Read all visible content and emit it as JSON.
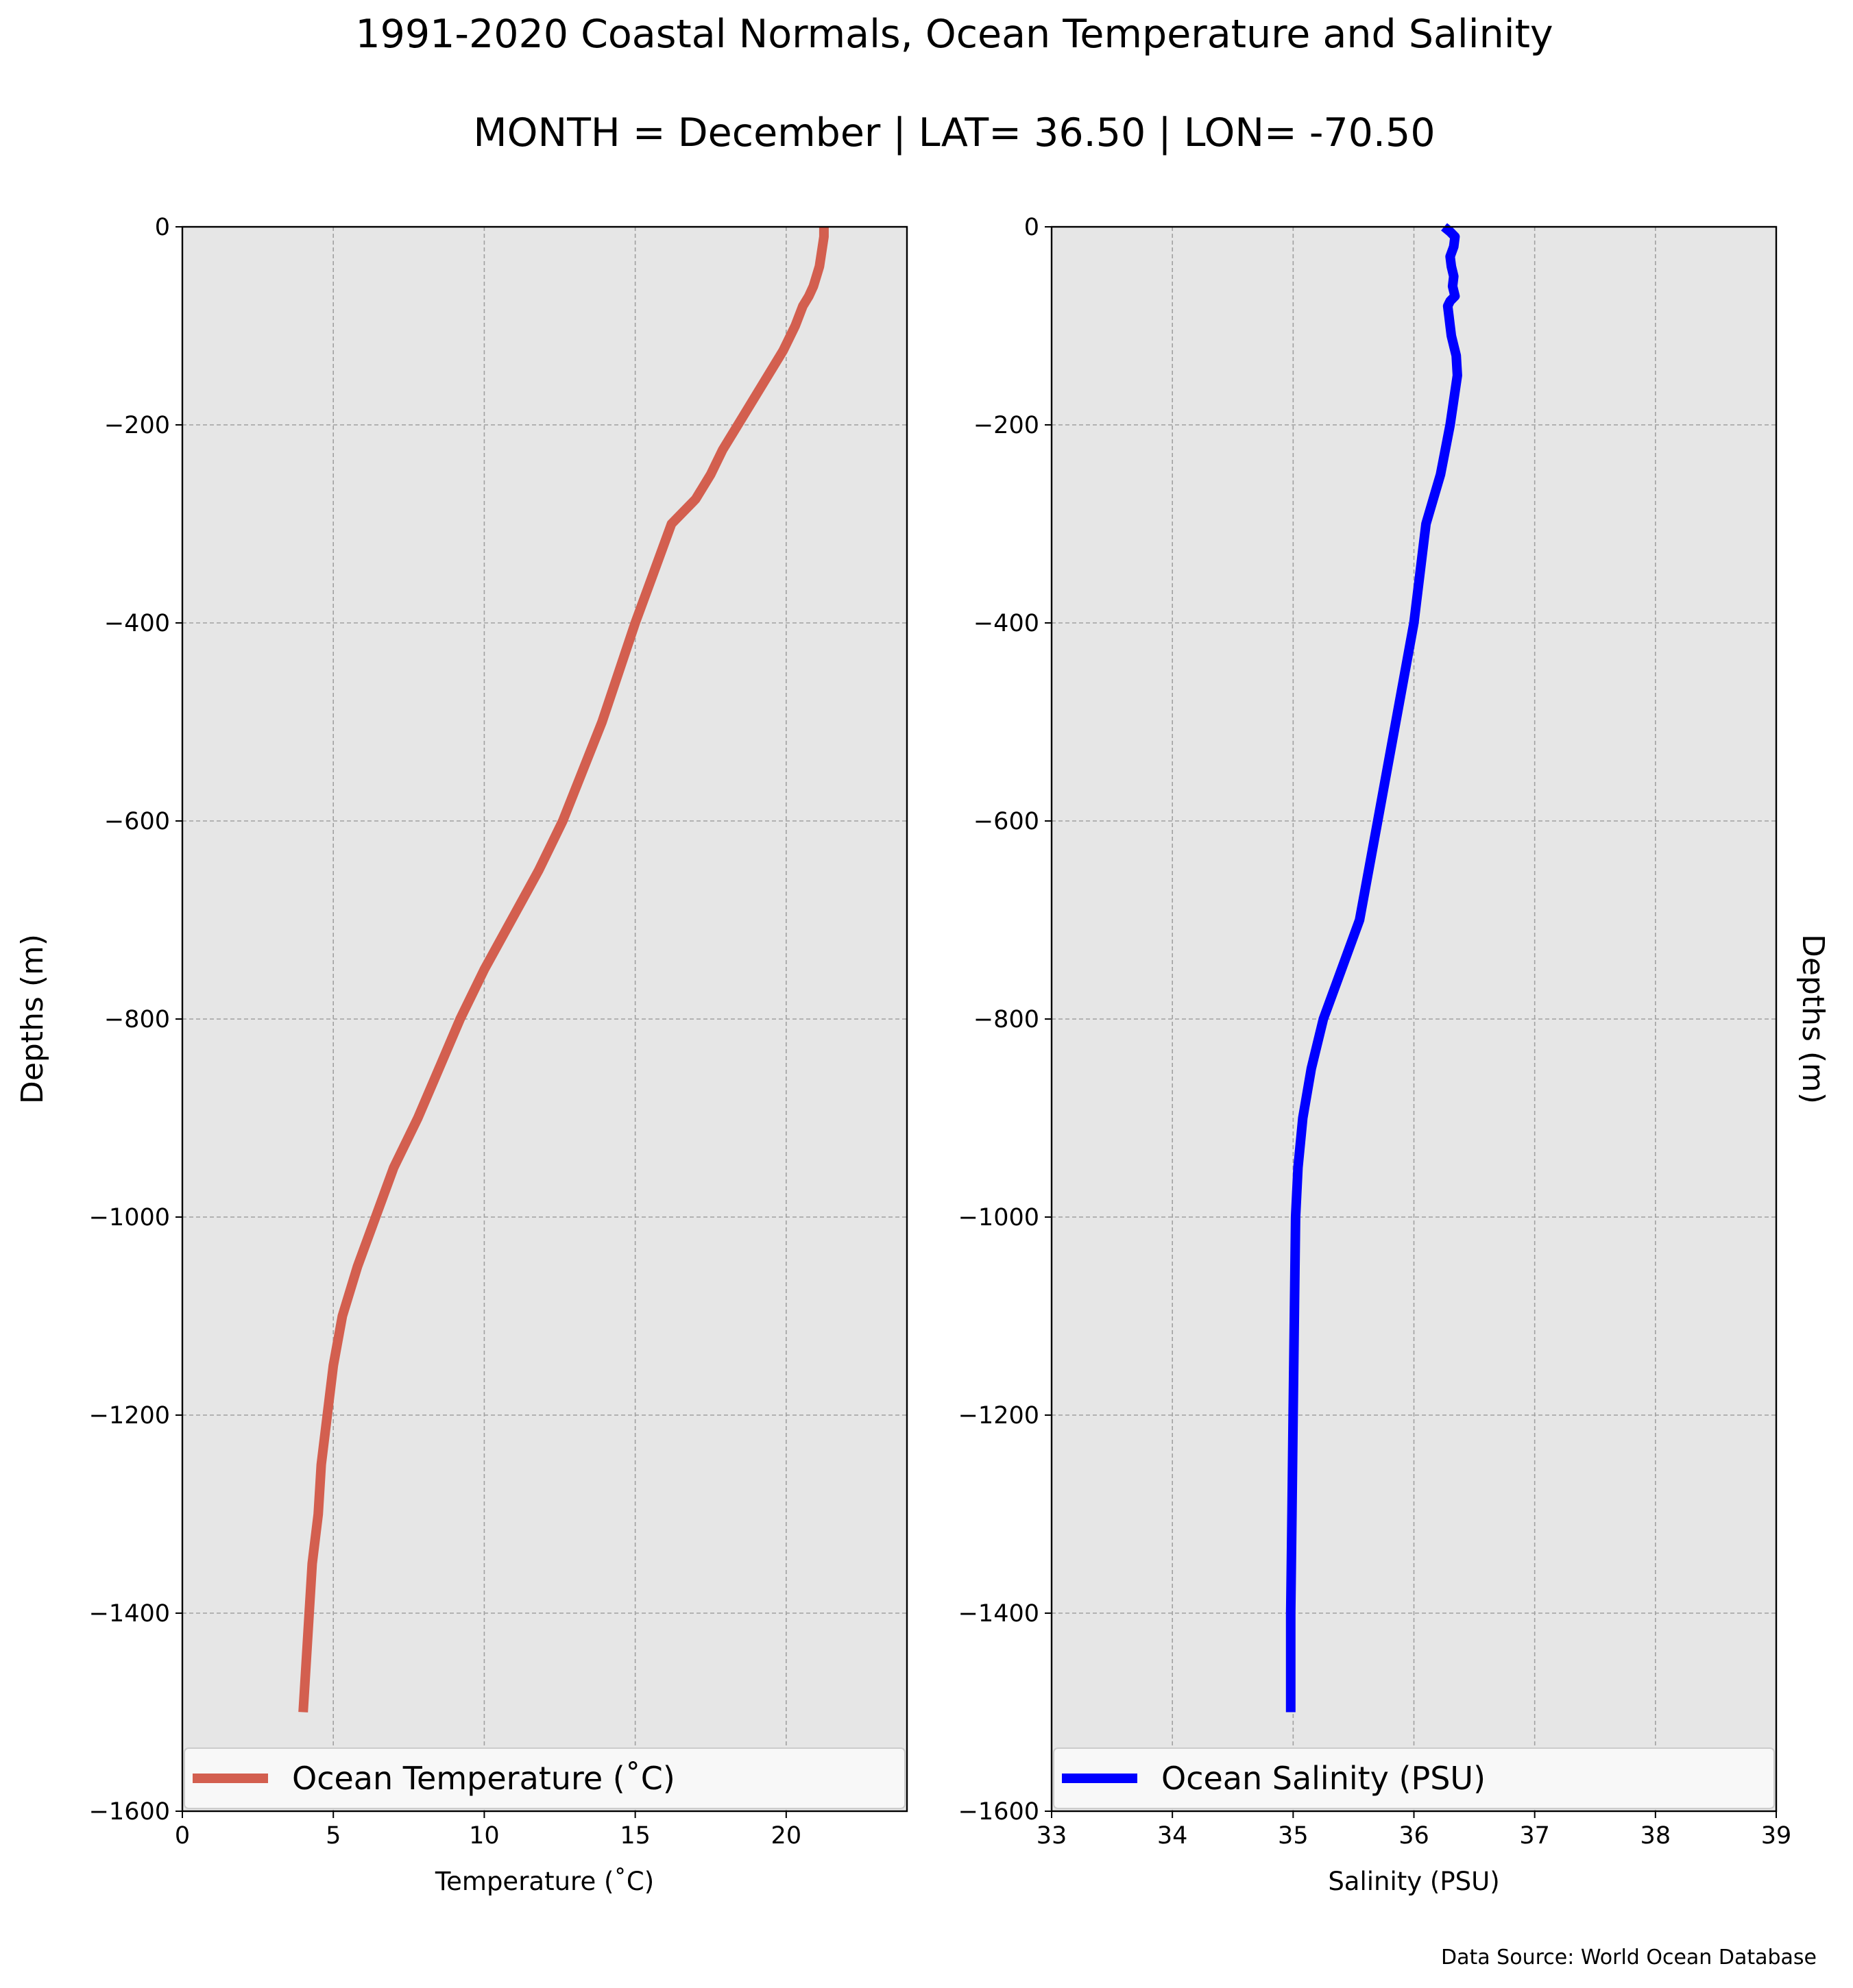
{
  "title": "1991-2020 Coastal Normals, Ocean Temperature and Salinity",
  "subtitle": "MONTH = December | LAT= 36.50 | LON= -70.50",
  "source_note": "Data Source: World Ocean Database",
  "colors": {
    "temperature_line": "#d35f4f",
    "salinity_line": "#0000ff",
    "plot_background": "#e6e6e6",
    "grid": "#a0a0a0"
  },
  "chart_data": [
    {
      "type": "line",
      "xlabel": "Temperature ($^\\circ$C)",
      "xlabel_display": "Temperature (˚C)",
      "ylabel": "Depths (m)",
      "xlim": [
        0,
        24
      ],
      "ylim": [
        -1600,
        0
      ],
      "xticks": [
        0,
        5,
        10,
        15,
        20
      ],
      "xtick_labels": [
        "0",
        "5",
        "10",
        "15",
        "20"
      ],
      "yticks": [
        0,
        -200,
        -400,
        -600,
        -800,
        -1000,
        -1200,
        -1400,
        -1600
      ],
      "ytick_labels": [
        "0",
        "−200",
        "−400",
        "−600",
        "−800",
        "−1000",
        "−1200",
        "−1400",
        "−1600"
      ],
      "grid": true,
      "legend": "bottom",
      "series": [
        {
          "name": "Ocean Temperature (˚C)",
          "x": [
            21.25,
            21.25,
            21.2,
            21.15,
            21.1,
            21.0,
            20.9,
            20.75,
            20.55,
            20.3,
            19.9,
            19.4,
            18.9,
            18.4,
            17.9,
            17.5,
            17.0,
            16.2,
            15.6,
            15.0,
            13.9,
            12.6,
            11.8,
            10.9,
            10.0,
            9.2,
            8.5,
            7.8,
            7.0,
            6.4,
            5.8,
            5.3,
            5.0,
            4.8,
            4.6,
            4.5,
            4.3,
            4.2,
            4.1,
            4.0
          ],
          "y": [
            0,
            -10,
            -20,
            -30,
            -40,
            -50,
            -60,
            -70,
            -80,
            -100,
            -125,
            -150,
            -175,
            -200,
            -225,
            -250,
            -275,
            -300,
            -350,
            -400,
            -500,
            -600,
            -650,
            -700,
            -750,
            -800,
            -850,
            -900,
            -950,
            -1000,
            -1050,
            -1100,
            -1150,
            -1200,
            -1250,
            -1300,
            -1350,
            -1400,
            -1450,
            -1500
          ]
        }
      ]
    },
    {
      "type": "line",
      "xlabel": "Salinity (PSU)",
      "ylabel": "Depths (m)",
      "xlim": [
        33,
        39
      ],
      "ylim": [
        -1600,
        0
      ],
      "xticks": [
        33,
        34,
        35,
        36,
        37,
        38,
        39
      ],
      "xtick_labels": [
        "33",
        "34",
        "35",
        "36",
        "37",
        "38",
        "39"
      ],
      "yticks": [
        0,
        -200,
        -400,
        -600,
        -800,
        -1000,
        -1200,
        -1400,
        -1600
      ],
      "ytick_labels": [
        "0",
        "−200",
        "−400",
        "−600",
        "−800",
        "−1000",
        "−1200",
        "−1400",
        "−1600"
      ],
      "grid": true,
      "legend": "bottom",
      "series": [
        {
          "name": "Ocean Salinity (PSU)",
          "x": [
            36.25,
            36.3,
            36.34,
            36.33,
            36.3,
            36.31,
            36.33,
            36.32,
            36.34,
            36.3,
            36.28,
            36.29,
            36.3,
            36.31,
            36.33,
            36.35,
            36.36,
            36.3,
            36.22,
            36.1,
            36.0,
            35.85,
            35.7,
            35.55,
            35.4,
            35.25,
            35.15,
            35.08,
            35.04,
            35.02,
            35.01,
            35.0,
            34.99,
            34.98,
            34.98
          ],
          "y": [
            0,
            -5,
            -10,
            -20,
            -30,
            -40,
            -50,
            -60,
            -70,
            -75,
            -80,
            -90,
            -100,
            -110,
            -120,
            -130,
            -150,
            -200,
            -250,
            -300,
            -400,
            -500,
            -600,
            -700,
            -750,
            -800,
            -850,
            -900,
            -950,
            -1000,
            -1100,
            -1200,
            -1300,
            -1400,
            -1500
          ]
        }
      ]
    }
  ]
}
